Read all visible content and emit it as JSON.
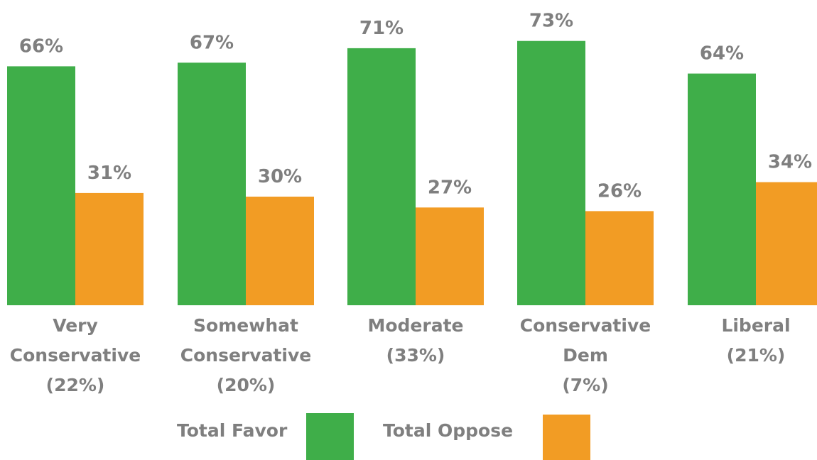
{
  "colors": {
    "favor": "#3fae49",
    "oppose": "#f29c24",
    "text": "#7f7f7f"
  },
  "chart_data": {
    "type": "bar",
    "categories": [
      [
        "Very",
        "Conservative",
        "(22%)"
      ],
      [
        "Somewhat",
        "Conservative",
        "(20%)"
      ],
      [
        "Moderate",
        "(33%)"
      ],
      [
        "Conservative",
        "Dem",
        "(7%)"
      ],
      [
        "Liberal",
        "(21%)"
      ]
    ],
    "series": [
      {
        "name": "Total Favor",
        "values": [
          66,
          67,
          71,
          73,
          64
        ],
        "labels": [
          "66%",
          "67%",
          "71%",
          "73%",
          "64%"
        ]
      },
      {
        "name": "Total Oppose",
        "values": [
          31,
          30,
          27,
          26,
          34
        ],
        "labels": [
          "31%",
          "30%",
          "27%",
          "26%",
          "34%"
        ]
      }
    ],
    "ylim": [
      0,
      100
    ],
    "grid": false,
    "legend_position": "bottom"
  }
}
